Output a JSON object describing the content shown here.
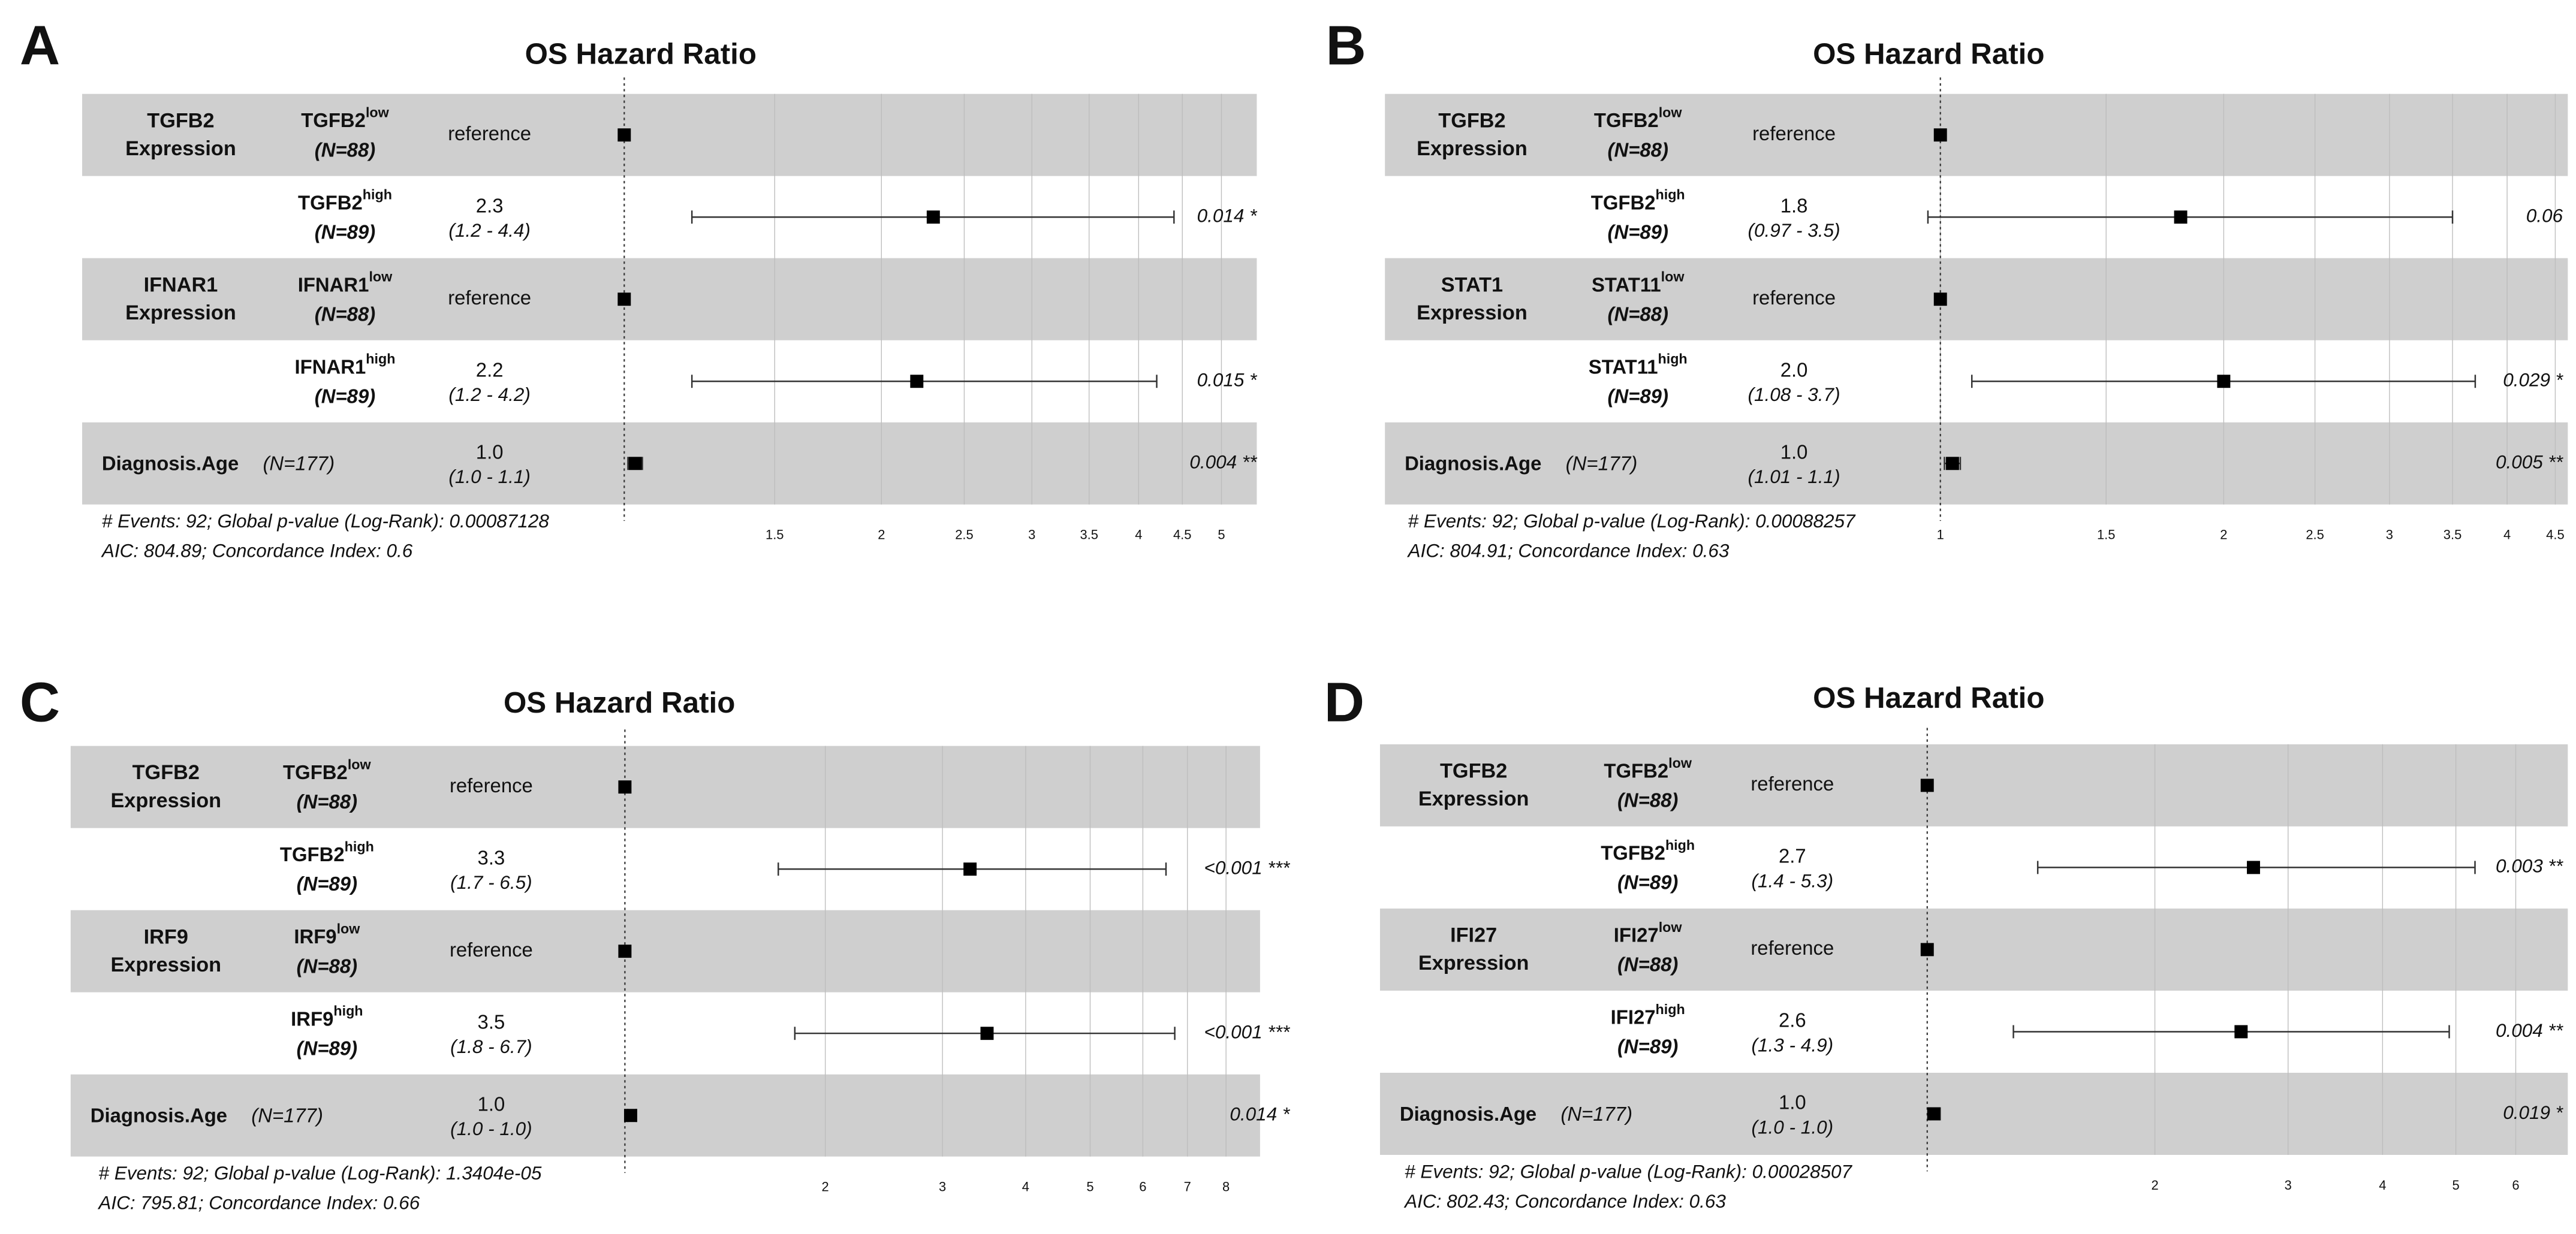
{
  "chart_data": [
    {
      "type": "forest",
      "panel": "A",
      "title": "OS Hazard Ratio",
      "log_scale": true,
      "grid": true,
      "reference_line": 1,
      "xlim": [
        0.232,
        5.5
      ],
      "xticks": [
        1.5,
        2,
        2.5,
        3,
        3.5,
        4,
        4.5,
        5
      ],
      "rows": [
        {
          "group": [
            "TGFB2",
            "Expression"
          ],
          "level": "TGFB2",
          "level_sup": "low",
          "n": "(N=88)"
        },
        {
          "level": "TGFB2",
          "level_sup": "high",
          "n": "(N=89)"
        },
        {
          "group": [
            "IFNAR1",
            "Expression"
          ],
          "level": "IFNAR1",
          "level_sup": "low",
          "n": "(N=88)"
        },
        {
          "level": "IFNAR1",
          "level_sup": "high",
          "n": "(N=89)"
        },
        {
          "group": [
            "Diagnosis.Age"
          ],
          "n": "(N=177)"
        }
      ],
      "values": [
        1,
        2.3,
        1,
        2.2,
        1.03
      ],
      "value_labels": [
        "reference",
        "2.3",
        "reference",
        "2.2",
        "1.0"
      ],
      "lower": [
        null,
        1.2,
        null,
        1.2,
        1.01
      ],
      "upper": [
        null,
        4.4,
        null,
        4.2,
        1.05
      ],
      "ci_labels": [
        null,
        "(1.2 - 4.4)",
        null,
        "(1.2 - 4.2)",
        "(1.0 - 1.1)"
      ],
      "p_labels": [
        null,
        "0.014 *",
        null,
        "0.015 *",
        "0.004 **"
      ],
      "footer": [
        "# Events: 92; Global p-value (Log-Rank): 0.00087128",
        "AIC: 804.89; Concordance Index: 0.6"
      ]
    },
    {
      "type": "forest",
      "panel": "B",
      "title": "OS Hazard Ratio",
      "log_scale": true,
      "grid": true,
      "reference_line": 1,
      "xlim": [
        0.257,
        4.64
      ],
      "xticks": [
        1,
        1.5,
        2,
        2.5,
        3,
        3.5,
        4,
        4.5
      ],
      "rows": [
        {
          "group": [
            "TGFB2",
            "Expression"
          ],
          "level": "TGFB2",
          "level_sup": "low",
          "n": "(N=88)"
        },
        {
          "level": "TGFB2",
          "level_sup": "high",
          "n": "(N=89)"
        },
        {
          "group": [
            "STAT1",
            "Expression"
          ],
          "level": "STAT11",
          "level_sup": "low",
          "n": "(N=88)"
        },
        {
          "level": "STAT11",
          "level_sup": "high",
          "n": "(N=89)"
        },
        {
          "group": [
            "Diagnosis.Age"
          ],
          "n": "(N=177)"
        }
      ],
      "values": [
        1,
        1.8,
        1,
        2.0,
        1.03
      ],
      "value_labels": [
        "reference",
        "1.8",
        "reference",
        "2.0",
        "1.0"
      ],
      "lower": [
        null,
        0.97,
        null,
        1.08,
        1.01
      ],
      "upper": [
        null,
        3.5,
        null,
        3.7,
        1.05
      ],
      "ci_labels": [
        null,
        "(0.97 - 3.5)",
        null,
        "(1.08 - 3.7)",
        "(1.01 - 1.1)"
      ],
      "p_labels": [
        null,
        "0.06",
        null,
        "0.029 *",
        "0.005 **"
      ],
      "footer": [
        "# Events: 92; Global p-value (Log-Rank): 0.00088257",
        "AIC: 804.91; Concordance Index: 0.63"
      ]
    },
    {
      "type": "forest",
      "panel": "C",
      "title": "OS Hazard Ratio",
      "log_scale": true,
      "grid": true,
      "reference_line": 1,
      "xlim": [
        0.147,
        9.0
      ],
      "xticks": [
        2,
        3,
        4,
        5,
        6,
        7,
        8
      ],
      "rows": [
        {
          "group": [
            "TGFB2",
            "Expression"
          ],
          "level": "TGFB2",
          "level_sup": "low",
          "n": "(N=88)"
        },
        {
          "level": "TGFB2",
          "level_sup": "high",
          "n": "(N=89)"
        },
        {
          "group": [
            "IRF9",
            "Expression"
          ],
          "level": "IRF9",
          "level_sup": "low",
          "n": "(N=88)"
        },
        {
          "level": "IRF9",
          "level_sup": "high",
          "n": "(N=89)"
        },
        {
          "group": [
            "Diagnosis.Age"
          ],
          "n": "(N=177)"
        }
      ],
      "values": [
        1,
        3.3,
        1,
        3.5,
        1.02
      ],
      "value_labels": [
        "reference",
        "3.3",
        "reference",
        "3.5",
        "1.0"
      ],
      "lower": [
        null,
        1.7,
        null,
        1.8,
        1.01
      ],
      "upper": [
        null,
        6.5,
        null,
        6.7,
        1.04
      ],
      "ci_labels": [
        null,
        "(1.7 - 6.5)",
        null,
        "(1.8 - 6.7)",
        "(1.0 - 1.0)"
      ],
      "p_labels": [
        null,
        "<0.001 ***",
        null,
        "<0.001 ***",
        "0.014 *"
      ],
      "footer": [
        "# Events: 92; Global p-value (Log-Rank): 1.3404e-05",
        "AIC: 795.81; Concordance Index: 0.66"
      ]
    },
    {
      "type": "forest",
      "panel": "D",
      "title": "OS Hazard Ratio",
      "log_scale": true,
      "grid": true,
      "reference_line": 1,
      "xlim": [
        0.189,
        7.03
      ],
      "xticks": [
        2,
        3,
        4,
        5,
        6
      ],
      "rows": [
        {
          "group": [
            "TGFB2",
            "Expression"
          ],
          "level": "TGFB2",
          "level_sup": "low",
          "n": "(N=88)"
        },
        {
          "level": "TGFB2",
          "level_sup": "high",
          "n": "(N=89)"
        },
        {
          "group": [
            "IFI27",
            "Expression"
          ],
          "level": "IFI27",
          "level_sup": "low",
          "n": "(N=88)"
        },
        {
          "level": "IFI27",
          "level_sup": "high",
          "n": "(N=89)"
        },
        {
          "group": [
            "Diagnosis.Age"
          ],
          "n": "(N=177)"
        }
      ],
      "values": [
        1,
        2.7,
        1,
        2.6,
        1.02
      ],
      "value_labels": [
        "reference",
        "2.7",
        "reference",
        "2.6",
        "1.0"
      ],
      "lower": [
        null,
        1.4,
        null,
        1.3,
        1.01
      ],
      "upper": [
        null,
        5.3,
        null,
        4.9,
        1.04
      ],
      "ci_labels": [
        null,
        "(1.4 - 5.3)",
        null,
        "(1.3 - 4.9)",
        "(1.0 - 1.0)"
      ],
      "p_labels": [
        null,
        "0.003 **",
        null,
        "0.004 **",
        "0.019 *"
      ],
      "footer": [
        "# Events: 92; Global p-value (Log-Rank): 0.00028507",
        "AIC: 802.43; Concordance Index: 0.63"
      ]
    }
  ]
}
